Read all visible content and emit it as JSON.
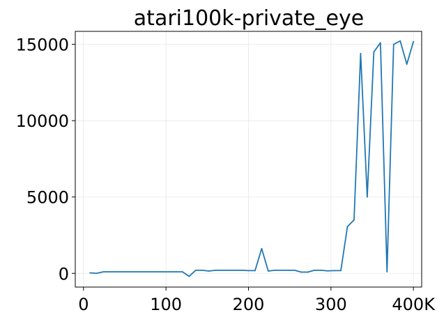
{
  "chart_data": {
    "type": "line",
    "title": "atari100k-private_eye",
    "xlabel": "",
    "ylabel": "",
    "xlim": [
      -10000,
      410000
    ],
    "ylim": [
      -900,
      15850
    ],
    "grid": true,
    "x_ticks": [
      {
        "value": 0,
        "label": "0"
      },
      {
        "value": 100000,
        "label": "100"
      },
      {
        "value": 200000,
        "label": "200"
      },
      {
        "value": 300000,
        "label": "300"
      },
      {
        "value": 400000,
        "label": "400K"
      }
    ],
    "y_ticks": [
      {
        "value": 0,
        "label": "0"
      },
      {
        "value": 5000,
        "label": "5000"
      },
      {
        "value": 10000,
        "label": "10000"
      },
      {
        "value": 15000,
        "label": "15000"
      }
    ],
    "series": [
      {
        "color": "#1f77b4",
        "x": [
          8000,
          16000,
          24000,
          32000,
          40000,
          48000,
          56000,
          64000,
          72000,
          80000,
          88000,
          96000,
          104000,
          112000,
          120000,
          128000,
          136000,
          144000,
          152000,
          160000,
          168000,
          176000,
          184000,
          192000,
          200000,
          208000,
          216000,
          224000,
          232000,
          240000,
          248000,
          256000,
          264000,
          272000,
          280000,
          288000,
          296000,
          304000,
          312000,
          320000,
          328000,
          336000,
          344000,
          352000,
          360000,
          368000,
          376000,
          384000,
          392000,
          400000
        ],
        "y": [
          30,
          0,
          100,
          100,
          100,
          100,
          100,
          100,
          100,
          100,
          100,
          100,
          100,
          100,
          100,
          -200,
          200,
          200,
          150,
          200,
          200,
          200,
          200,
          200,
          180,
          180,
          1620,
          150,
          200,
          200,
          200,
          200,
          80,
          80,
          200,
          200,
          160,
          180,
          180,
          3060,
          3500,
          14400,
          5000,
          14500,
          15100,
          100,
          15000,
          15220,
          13700,
          15180
        ]
      }
    ]
  }
}
